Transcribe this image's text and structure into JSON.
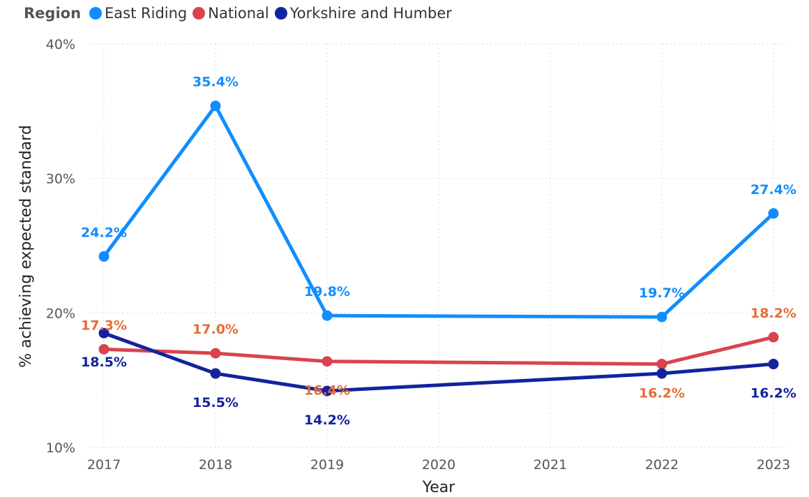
{
  "legend": {
    "title": "Region"
  },
  "chart_data": {
    "type": "line",
    "x": [
      "2017",
      "2018",
      "2019",
      "2020",
      "2021",
      "2022",
      "2023"
    ],
    "xlabel": "Year",
    "ylabel": "% achieving expected standard",
    "ylim": [
      10,
      40
    ],
    "yticks": [
      "10%",
      "20%",
      "30%",
      "40%"
    ],
    "grid": true,
    "legend_position": "top-left",
    "series": [
      {
        "name": "East Riding",
        "color": "#118DFF",
        "label_color": "#118DFF",
        "x": [
          "2017",
          "2018",
          "2019",
          "2022",
          "2023"
        ],
        "values": [
          24.2,
          35.4,
          19.8,
          19.7,
          27.4
        ],
        "labels": [
          "24.2%",
          "35.4%",
          "19.8%",
          "19.7%",
          "27.4%"
        ]
      },
      {
        "name": "National",
        "color": "#D9434F",
        "label_color": "#E66C37",
        "x": [
          "2017",
          "2018",
          "2019",
          "2022",
          "2023"
        ],
        "values": [
          17.3,
          17.0,
          16.4,
          16.2,
          18.2
        ],
        "labels": [
          "17.3%",
          "17.0%",
          "16.4%",
          "16.2%",
          "18.2%"
        ]
      },
      {
        "name": "Yorkshire and Humber",
        "color": "#12239E",
        "label_color": "#12239E",
        "x": [
          "2017",
          "2018",
          "2019",
          "2022",
          "2023"
        ],
        "values": [
          18.5,
          15.5,
          14.2,
          15.5,
          16.2
        ],
        "labels": [
          "18.5%",
          "15.5%",
          "14.2%",
          "",
          "16.2%"
        ]
      }
    ]
  }
}
